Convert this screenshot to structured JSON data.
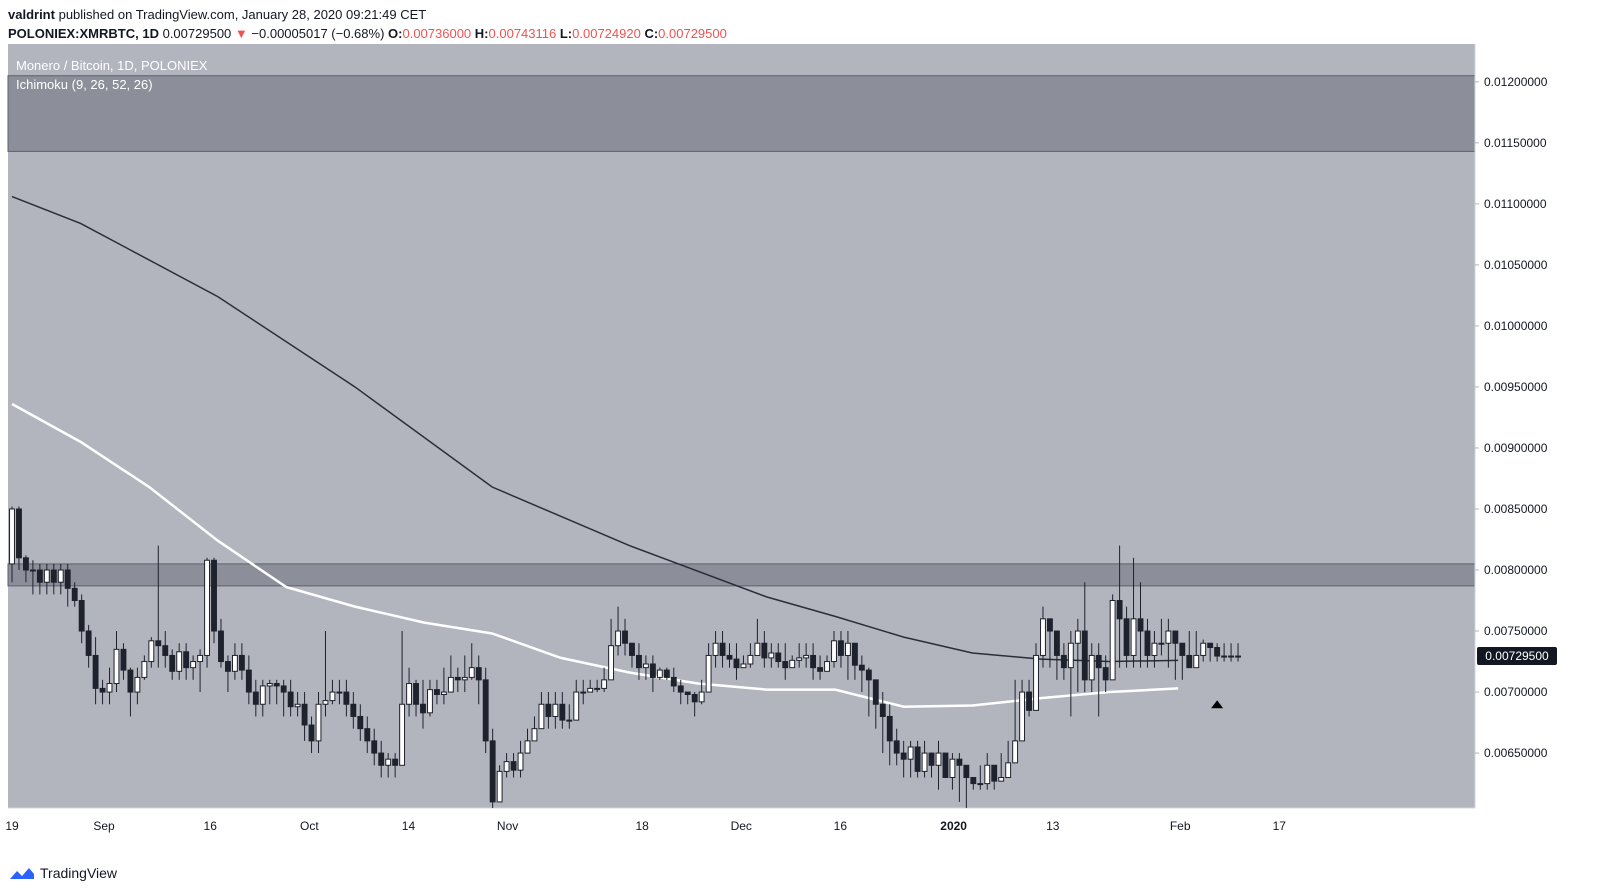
{
  "header": {
    "author": "valdrint",
    "published_text": "published on TradingView.com, January 28, 2020 09:21:49 CET",
    "symbol": "POLONIEX:XMRBTC, 1D",
    "last": "0.00729500",
    "arrow": "▼",
    "change": "−0.00005017 (−0.68%)",
    "o_label": "O:",
    "o_value": "0.00736000",
    "h_label": "H:",
    "h_value": "0.00743116",
    "l_label": "L:",
    "l_value": "0.00724920",
    "c_label": "C:",
    "c_value": "0.00729500"
  },
  "pane": {
    "title": "Monero / Bitcoin, 1D, POLONIEX",
    "indicator": "Ichimoku (9, 26, 52, 26)"
  },
  "footer": {
    "brand": "TradingView",
    "icon": "tradingview-cloud-icon"
  },
  "colors": {
    "background": "#b2b5be",
    "up_candle": "#ffffff",
    "down_candle": "#1e222d",
    "ma_long": "#2a2e39",
    "ma_short": "#ffffff",
    "zone": "#787b86",
    "price_label_bg": "#131722"
  },
  "chart_data": {
    "type": "candlestick",
    "x_ticks": [
      "19",
      "Sep",
      "16",
      "Oct",
      "14",
      "Nov",
      "18",
      "Dec",
      "16",
      "2020",
      "13",
      "Feb",
      "17"
    ],
    "y_ticks": [
      "0.01200000",
      "0.01150000",
      "0.01100000",
      "0.01050000",
      "0.01000000",
      "0.00950000",
      "0.00900000",
      "0.00850000",
      "0.00800000",
      "0.00750000",
      "0.00700000",
      "0.00650000"
    ],
    "y_range": [
      0.00605,
      0.01231
    ],
    "current_price_label": "0.00729500",
    "current_price": 0.007295,
    "x_range_days": [
      0,
      178
    ],
    "zones": [
      {
        "from": 0.01143,
        "to": 0.01205
      },
      {
        "from": 0.00787,
        "to": 0.00805
      }
    ],
    "ma_long": {
      "days": [
        0,
        10,
        30,
        50,
        70,
        90,
        110,
        120,
        130,
        140,
        150,
        160,
        170
      ],
      "values": [
        0.01106,
        0.01084,
        0.01024,
        0.0095,
        0.00868,
        0.0082,
        0.00778,
        0.00762,
        0.00745,
        0.00732,
        0.00727,
        0.00725,
        0.00726
      ]
    },
    "ma_short": {
      "days": [
        0,
        10,
        20,
        30,
        40,
        50,
        60,
        70,
        80,
        90,
        100,
        110,
        120,
        130,
        140,
        150,
        160,
        170
      ],
      "values": [
        0.00936,
        0.00905,
        0.00868,
        0.00824,
        0.00786,
        0.0077,
        0.00757,
        0.00748,
        0.00728,
        0.00716,
        0.00707,
        0.00702,
        0.00702,
        0.00688,
        0.00689,
        0.00695,
        0.007,
        0.00703
      ]
    },
    "candles": {
      "day": [
        0,
        1,
        2,
        3,
        4,
        5,
        6,
        7,
        8,
        9,
        10,
        11,
        12,
        13,
        14,
        15,
        16,
        17,
        18,
        19,
        20,
        21,
        22,
        23,
        24,
        25,
        26,
        27,
        28,
        29,
        30,
        31,
        32,
        33,
        34,
        35,
        36,
        37,
        38,
        39,
        40,
        41,
        42,
        43,
        44,
        45,
        46,
        47,
        48,
        49,
        50,
        51,
        52,
        53,
        54,
        55,
        56,
        57,
        58,
        59,
        60,
        61,
        62,
        63,
        64,
        65,
        66,
        67,
        68,
        69,
        70,
        71,
        72,
        73,
        74,
        75,
        76,
        77,
        78,
        79,
        80,
        81,
        82,
        83,
        84,
        85,
        86,
        87,
        88,
        89,
        90,
        91,
        92,
        93,
        94,
        95,
        96,
        97,
        98,
        99,
        100,
        101,
        102,
        103,
        104,
        105,
        106,
        107,
        108,
        109,
        110,
        111,
        112,
        113,
        114,
        115,
        116,
        117,
        118,
        119,
        120,
        121,
        122,
        123,
        124,
        125,
        126,
        127,
        128,
        129,
        130,
        131,
        132,
        133,
        134,
        135,
        136,
        137,
        138,
        139,
        140,
        141,
        142,
        143,
        144,
        145,
        146,
        147,
        148,
        149,
        150,
        151,
        152,
        153,
        154,
        155,
        156,
        157,
        158,
        159,
        160,
        161,
        162,
        163,
        164,
        165,
        166,
        167,
        168,
        169,
        170,
        171,
        172,
        173,
        174,
        175,
        176,
        177,
        178
      ],
      "open": [
        0.00805,
        0.0085,
        0.0081,
        0.008,
        0.008,
        0.0079,
        0.008,
        0.0079,
        0.008,
        0.00785,
        0.00775,
        0.0075,
        0.0073,
        0.00703,
        0.007,
        0.00707,
        0.00735,
        0.00718,
        0.007,
        0.00712,
        0.00725,
        0.00742,
        0.00738,
        0.0073,
        0.00717,
        0.00733,
        0.0072,
        0.00725,
        0.0073,
        0.00808,
        0.0075,
        0.00725,
        0.00717,
        0.0073,
        0.00718,
        0.007,
        0.0069,
        0.00705,
        0.00707,
        0.00705,
        0.007,
        0.00688,
        0.0069,
        0.00673,
        0.0066,
        0.0069,
        0.00693,
        0.007,
        0.007,
        0.0069,
        0.0068,
        0.0067,
        0.0066,
        0.0065,
        0.0064,
        0.00645,
        0.0064,
        0.0069,
        0.00707,
        0.0069,
        0.00683,
        0.00702,
        0.00698,
        0.007,
        0.00712,
        0.0071,
        0.00712,
        0.0072,
        0.0071,
        0.0066,
        0.0061,
        0.00635,
        0.00643,
        0.00636,
        0.0065,
        0.0066,
        0.0067,
        0.0069,
        0.0068,
        0.0069,
        0.00677,
        0.00677,
        0.007,
        0.007,
        0.00703,
        0.00703,
        0.0071,
        0.00738,
        0.0075,
        0.0074,
        0.0073,
        0.0072,
        0.00723,
        0.00712,
        0.00718,
        0.00712,
        0.00705,
        0.007,
        0.00698,
        0.00692,
        0.007,
        0.0073,
        0.0074,
        0.0073,
        0.00727,
        0.0072,
        0.00723,
        0.0073,
        0.0074,
        0.00728,
        0.00732,
        0.00725,
        0.0072,
        0.00726,
        0.00728,
        0.0073,
        0.0072,
        0.00717,
        0.00725,
        0.00742,
        0.0073,
        0.0074,
        0.00722,
        0.00718,
        0.0071,
        0.0069,
        0.0068,
        0.0066,
        0.0065,
        0.00645,
        0.00655,
        0.00635,
        0.0065,
        0.0064,
        0.0065,
        0.0063,
        0.00645,
        0.0064,
        0.0063,
        0.00625,
        0.00625,
        0.0064,
        0.00627,
        0.0063,
        0.00642,
        0.0066,
        0.007,
        0.00685,
        0.0073,
        0.0076,
        0.0075,
        0.0073,
        0.0072,
        0.0074,
        0.0075,
        0.0071,
        0.0073,
        0.0072,
        0.0071,
        0.00775,
        0.0076,
        0.0073,
        0.0076,
        0.0075,
        0.0073,
        0.0074,
        0.0074,
        0.0075,
        0.0074,
        0.0073,
        0.0072,
        0.0073,
        0.0074,
        0.007365,
        0.007295,
        0.007295,
        0.007295
      ],
      "close": [
        0.0085,
        0.0081,
        0.008,
        0.008,
        0.0079,
        0.008,
        0.0079,
        0.008,
        0.00785,
        0.00775,
        0.0075,
        0.0073,
        0.00703,
        0.007,
        0.00707,
        0.00735,
        0.00718,
        0.007,
        0.00712,
        0.00725,
        0.00742,
        0.00738,
        0.0073,
        0.00717,
        0.00733,
        0.0072,
        0.00725,
        0.0073,
        0.00808,
        0.0075,
        0.00725,
        0.00717,
        0.0073,
        0.00718,
        0.007,
        0.0069,
        0.00705,
        0.00707,
        0.00705,
        0.007,
        0.00688,
        0.0069,
        0.00673,
        0.0066,
        0.0069,
        0.00693,
        0.007,
        0.007,
        0.0069,
        0.0068,
        0.0067,
        0.0066,
        0.0065,
        0.0064,
        0.00645,
        0.0064,
        0.0069,
        0.00707,
        0.0069,
        0.00683,
        0.00702,
        0.00698,
        0.007,
        0.00712,
        0.0071,
        0.00712,
        0.0072,
        0.0071,
        0.0066,
        0.0061,
        0.00635,
        0.00643,
        0.00636,
        0.0065,
        0.0066,
        0.0067,
        0.0069,
        0.0068,
        0.0069,
        0.00677,
        0.00677,
        0.007,
        0.007,
        0.00703,
        0.00703,
        0.0071,
        0.00738,
        0.0075,
        0.0074,
        0.0073,
        0.0072,
        0.00723,
        0.00712,
        0.00718,
        0.00712,
        0.00705,
        0.007,
        0.00698,
        0.00692,
        0.007,
        0.0073,
        0.0074,
        0.0073,
        0.00727,
        0.0072,
        0.00723,
        0.0073,
        0.0074,
        0.00728,
        0.00732,
        0.00725,
        0.0072,
        0.00726,
        0.00728,
        0.0073,
        0.0072,
        0.00717,
        0.00725,
        0.00742,
        0.0073,
        0.0074,
        0.00722,
        0.00718,
        0.0071,
        0.0069,
        0.0068,
        0.0066,
        0.0065,
        0.00645,
        0.00655,
        0.00635,
        0.0065,
        0.0064,
        0.0065,
        0.0063,
        0.00645,
        0.0064,
        0.0063,
        0.00625,
        0.00625,
        0.0064,
        0.00627,
        0.0063,
        0.00642,
        0.0066,
        0.007,
        0.00685,
        0.0073,
        0.0076,
        0.0075,
        0.0073,
        0.0072,
        0.0074,
        0.0075,
        0.0071,
        0.0073,
        0.0072,
        0.0071,
        0.00775,
        0.0076,
        0.0073,
        0.0076,
        0.0075,
        0.0073,
        0.0074,
        0.0074,
        0.0075,
        0.0074,
        0.0073,
        0.0072,
        0.0073,
        0.0074,
        0.007365,
        0.007295,
        0.007295,
        0.007295,
        0.007295
      ],
      "high": [
        0.00852,
        0.00852,
        0.00812,
        0.00808,
        0.00805,
        0.00805,
        0.00805,
        0.00805,
        0.00805,
        0.0079,
        0.0078,
        0.00755,
        0.00745,
        0.0071,
        0.0072,
        0.0075,
        0.0074,
        0.0072,
        0.0072,
        0.0073,
        0.00745,
        0.0082,
        0.0075,
        0.00735,
        0.0074,
        0.0074,
        0.0073,
        0.00735,
        0.0081,
        0.0081,
        0.0076,
        0.0073,
        0.0074,
        0.0074,
        0.0073,
        0.0071,
        0.0071,
        0.0071,
        0.0071,
        0.0071,
        0.0071,
        0.007,
        0.007,
        0.0068,
        0.007,
        0.0075,
        0.0071,
        0.0071,
        0.0071,
        0.007,
        0.0069,
        0.0068,
        0.0067,
        0.0066,
        0.0065,
        0.0065,
        0.0075,
        0.0072,
        0.0071,
        0.0071,
        0.0071,
        0.0071,
        0.0072,
        0.0073,
        0.0072,
        0.0073,
        0.0074,
        0.0073,
        0.0072,
        0.0067,
        0.0064,
        0.0065,
        0.0065,
        0.0066,
        0.0067,
        0.0068,
        0.007,
        0.007,
        0.007,
        0.007,
        0.0069,
        0.0071,
        0.0071,
        0.0071,
        0.0071,
        0.0072,
        0.0076,
        0.0077,
        0.0076,
        0.0074,
        0.0074,
        0.0073,
        0.0073,
        0.0072,
        0.0072,
        0.0072,
        0.0071,
        0.007,
        0.007,
        0.0071,
        0.0074,
        0.0075,
        0.0075,
        0.0074,
        0.0074,
        0.0073,
        0.0074,
        0.0076,
        0.0075,
        0.0074,
        0.0074,
        0.0074,
        0.0073,
        0.0074,
        0.0074,
        0.0074,
        0.0073,
        0.0073,
        0.0075,
        0.0075,
        0.0075,
        0.0074,
        0.0073,
        0.0072,
        0.0071,
        0.007,
        0.0069,
        0.0067,
        0.0066,
        0.0066,
        0.0066,
        0.0066,
        0.0065,
        0.0066,
        0.0065,
        0.0065,
        0.0065,
        0.0064,
        0.0063,
        0.0064,
        0.0065,
        0.0064,
        0.0065,
        0.0066,
        0.0071,
        0.0071,
        0.0071,
        0.0074,
        0.0077,
        0.0076,
        0.0075,
        0.0074,
        0.0075,
        0.0076,
        0.0079,
        0.0074,
        0.0074,
        0.0073,
        0.0078,
        0.0082,
        0.0077,
        0.0081,
        0.0079,
        0.0076,
        0.0075,
        0.0076,
        0.0076,
        0.0075,
        0.0074,
        0.0075,
        0.0075,
        0.00743,
        0.0074,
        0.0074,
        0.0074,
        0.0074,
        0.0074
      ],
      "low": [
        0.0079,
        0.008,
        0.0079,
        0.0078,
        0.0078,
        0.0078,
        0.0078,
        0.0078,
        0.0077,
        0.0077,
        0.0074,
        0.0072,
        0.0069,
        0.0069,
        0.0069,
        0.007,
        0.0071,
        0.0068,
        0.0069,
        0.0071,
        0.0072,
        0.0072,
        0.0072,
        0.0071,
        0.0071,
        0.0071,
        0.0071,
        0.007,
        0.0072,
        0.0074,
        0.0072,
        0.007,
        0.0071,
        0.0071,
        0.0069,
        0.0068,
        0.0068,
        0.0069,
        0.0069,
        0.0068,
        0.0068,
        0.0068,
        0.0066,
        0.0065,
        0.0065,
        0.0068,
        0.0069,
        0.0069,
        0.0068,
        0.0067,
        0.0066,
        0.0065,
        0.0064,
        0.0063,
        0.0063,
        0.0063,
        0.0064,
        0.0068,
        0.0068,
        0.0067,
        0.0068,
        0.0069,
        0.0069,
        0.007,
        0.007,
        0.007,
        0.0071,
        0.0069,
        0.0065,
        0.00605,
        0.0061,
        0.0063,
        0.0063,
        0.0063,
        0.0065,
        0.0066,
        0.0067,
        0.0067,
        0.0067,
        0.0067,
        0.0067,
        0.0069,
        0.0069,
        0.007,
        0.007,
        0.007,
        0.0073,
        0.0073,
        0.0073,
        0.0072,
        0.0071,
        0.0071,
        0.007,
        0.0071,
        0.0071,
        0.007,
        0.0069,
        0.0069,
        0.0068,
        0.0069,
        0.0073,
        0.0072,
        0.0072,
        0.0072,
        0.0071,
        0.0072,
        0.0072,
        0.0073,
        0.0072,
        0.0072,
        0.0072,
        0.0071,
        0.0072,
        0.0072,
        0.0072,
        0.0071,
        0.0071,
        0.0072,
        0.0072,
        0.0072,
        0.0071,
        0.0071,
        0.007,
        0.0068,
        0.0067,
        0.0065,
        0.0064,
        0.0064,
        0.0063,
        0.0063,
        0.0063,
        0.0063,
        0.0063,
        0.0062,
        0.0063,
        0.0062,
        0.0061,
        0.00605,
        0.0062,
        0.0062,
        0.0062,
        0.0062,
        0.0063,
        0.0065,
        0.0068,
        0.0068,
        0.0068,
        0.0072,
        0.0072,
        0.0072,
        0.0071,
        0.0071,
        0.0068,
        0.007,
        0.007,
        0.007,
        0.0068,
        0.007,
        0.0072,
        0.0072,
        0.0072,
        0.0072,
        0.0072,
        0.0072,
        0.0072,
        0.0073,
        0.0072,
        0.0071,
        0.0071,
        0.0072,
        0.0072,
        0.00725,
        0.00725,
        0.00725,
        0.00725,
        0.00725,
        0.00725
      ]
    },
    "marker": {
      "day": 173,
      "value": 0.0069,
      "shape": "triangle-up"
    }
  }
}
